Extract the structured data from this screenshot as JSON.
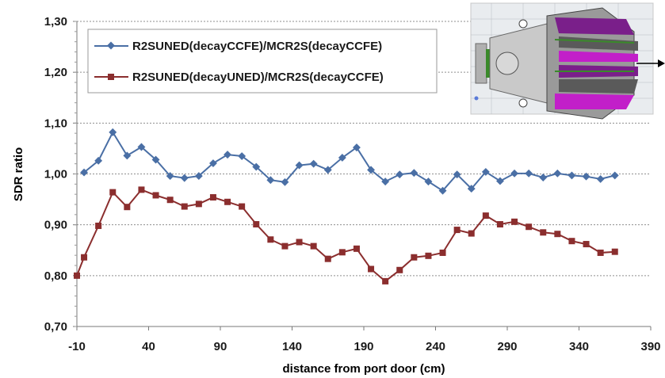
{
  "chart_data": {
    "type": "line",
    "xlabel": "distance from port door (cm)",
    "ylabel": "SDR ratio",
    "xlim": [
      -10,
      390
    ],
    "ylim": [
      0.7,
      1.3
    ],
    "x_ticks": [
      "-10",
      "40",
      "90",
      "140",
      "190",
      "240",
      "290",
      "340",
      "390"
    ],
    "y_ticks": [
      "0,70",
      "0,80",
      "0,90",
      "1,00",
      "1,10",
      "1,20",
      "1,30"
    ],
    "grid": "horizontal dashed",
    "legend_position": "top-left",
    "series": [
      {
        "name": "R2SUNED(decayCCFE)/MCR2S(decayCCFE)",
        "color": "#4a6fa5",
        "marker": "diamond",
        "x": [
          -5,
          5,
          15,
          25,
          35,
          45,
          55,
          65,
          75,
          85,
          95,
          105,
          115,
          125,
          135,
          145,
          155,
          165,
          175,
          185,
          195,
          205,
          215,
          225,
          235,
          245,
          255,
          265,
          275,
          285,
          295,
          305,
          315,
          325,
          335,
          345,
          355,
          365
        ],
        "y": [
          1.003,
          1.026,
          1.082,
          1.036,
          1.053,
          1.028,
          0.996,
          0.992,
          0.996,
          1.021,
          1.038,
          1.035,
          1.014,
          0.988,
          0.984,
          1.017,
          1.02,
          1.008,
          1.032,
          1.052,
          1.008,
          0.985,
          0.999,
          1.002,
          0.985,
          0.967,
          0.999,
          0.971,
          1.004,
          0.986,
          1.001,
          1.001,
          0.993,
          1.001,
          0.997,
          0.995,
          0.99,
          0.997
        ]
      },
      {
        "name": "R2SUNED(decayUNED)/MCR2S(decayCCFE)",
        "color": "#8b2e2e",
        "marker": "square",
        "x": [
          -10,
          -5,
          5,
          15,
          25,
          35,
          45,
          55,
          65,
          75,
          85,
          95,
          105,
          115,
          125,
          135,
          145,
          155,
          165,
          175,
          185,
          195,
          205,
          215,
          225,
          235,
          245,
          255,
          265,
          275,
          285,
          295,
          305,
          315,
          325,
          335,
          345,
          355,
          365
        ],
        "y": [
          0.8,
          0.836,
          0.898,
          0.964,
          0.935,
          0.969,
          0.958,
          0.949,
          0.936,
          0.941,
          0.954,
          0.945,
          0.936,
          0.901,
          0.871,
          0.858,
          0.866,
          0.858,
          0.833,
          0.846,
          0.853,
          0.813,
          0.789,
          0.811,
          0.836,
          0.839,
          0.845,
          0.89,
          0.883,
          0.918,
          0.901,
          0.906,
          0.896,
          0.885,
          0.882,
          0.868,
          0.862,
          0.845,
          0.847
        ]
      }
    ]
  },
  "inset_image": {
    "icon": "port-plug-cad-model-icon",
    "description_colors": [
      "#7a1f8a",
      "#c21fc9",
      "#3a8a2a",
      "#8a8a8a"
    ]
  }
}
